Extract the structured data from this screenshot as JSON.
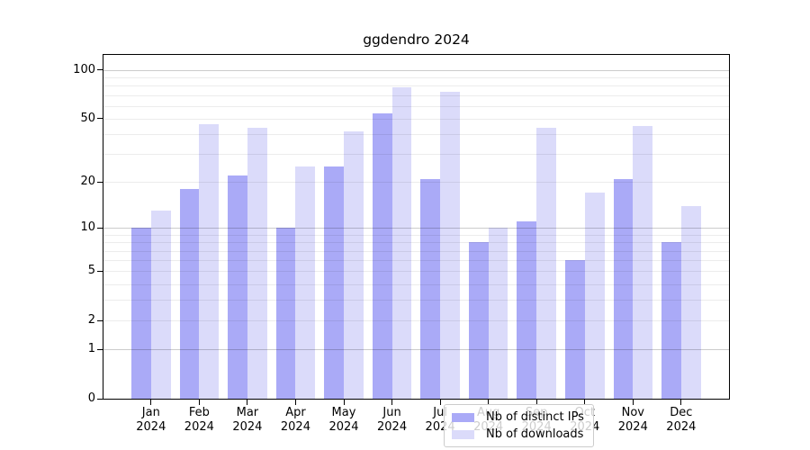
{
  "figure": {
    "title": "ggdendro 2024"
  },
  "chart_data": {
    "type": "bar",
    "title": "ggdendro 2024",
    "categories": [
      "Jan 2024",
      "Feb 2024",
      "Mar 2024",
      "Apr 2024",
      "May 2024",
      "Jun 2024",
      "Jul 2024",
      "Aug 2024",
      "Sep 2024",
      "Oct 2024",
      "Nov 2024",
      "Dec 2024"
    ],
    "series": [
      {
        "name": "Nb of distinct IPs",
        "color": "#aaaaf7",
        "values": [
          10,
          18,
          22,
          10,
          25,
          54,
          21,
          8,
          11,
          6,
          21,
          8
        ]
      },
      {
        "name": "Nb of downloads",
        "color": "#dbdbfa",
        "values": [
          13,
          46,
          44,
          25,
          42,
          78,
          74,
          10,
          44,
          17,
          45,
          14
        ]
      }
    ],
    "xlabel": "",
    "ylabel": "",
    "yscale": "log1p",
    "ylim": [
      0,
      125
    ],
    "yticks": [
      0,
      1,
      2,
      5,
      10,
      20,
      50,
      100
    ],
    "grid_major": [
      1,
      10,
      100
    ],
    "grid_minor": [
      2,
      3,
      4,
      5,
      6,
      7,
      8,
      9,
      20,
      30,
      40,
      50,
      60,
      70,
      80,
      90
    ],
    "grid": "on",
    "legend_position": "lower center"
  }
}
